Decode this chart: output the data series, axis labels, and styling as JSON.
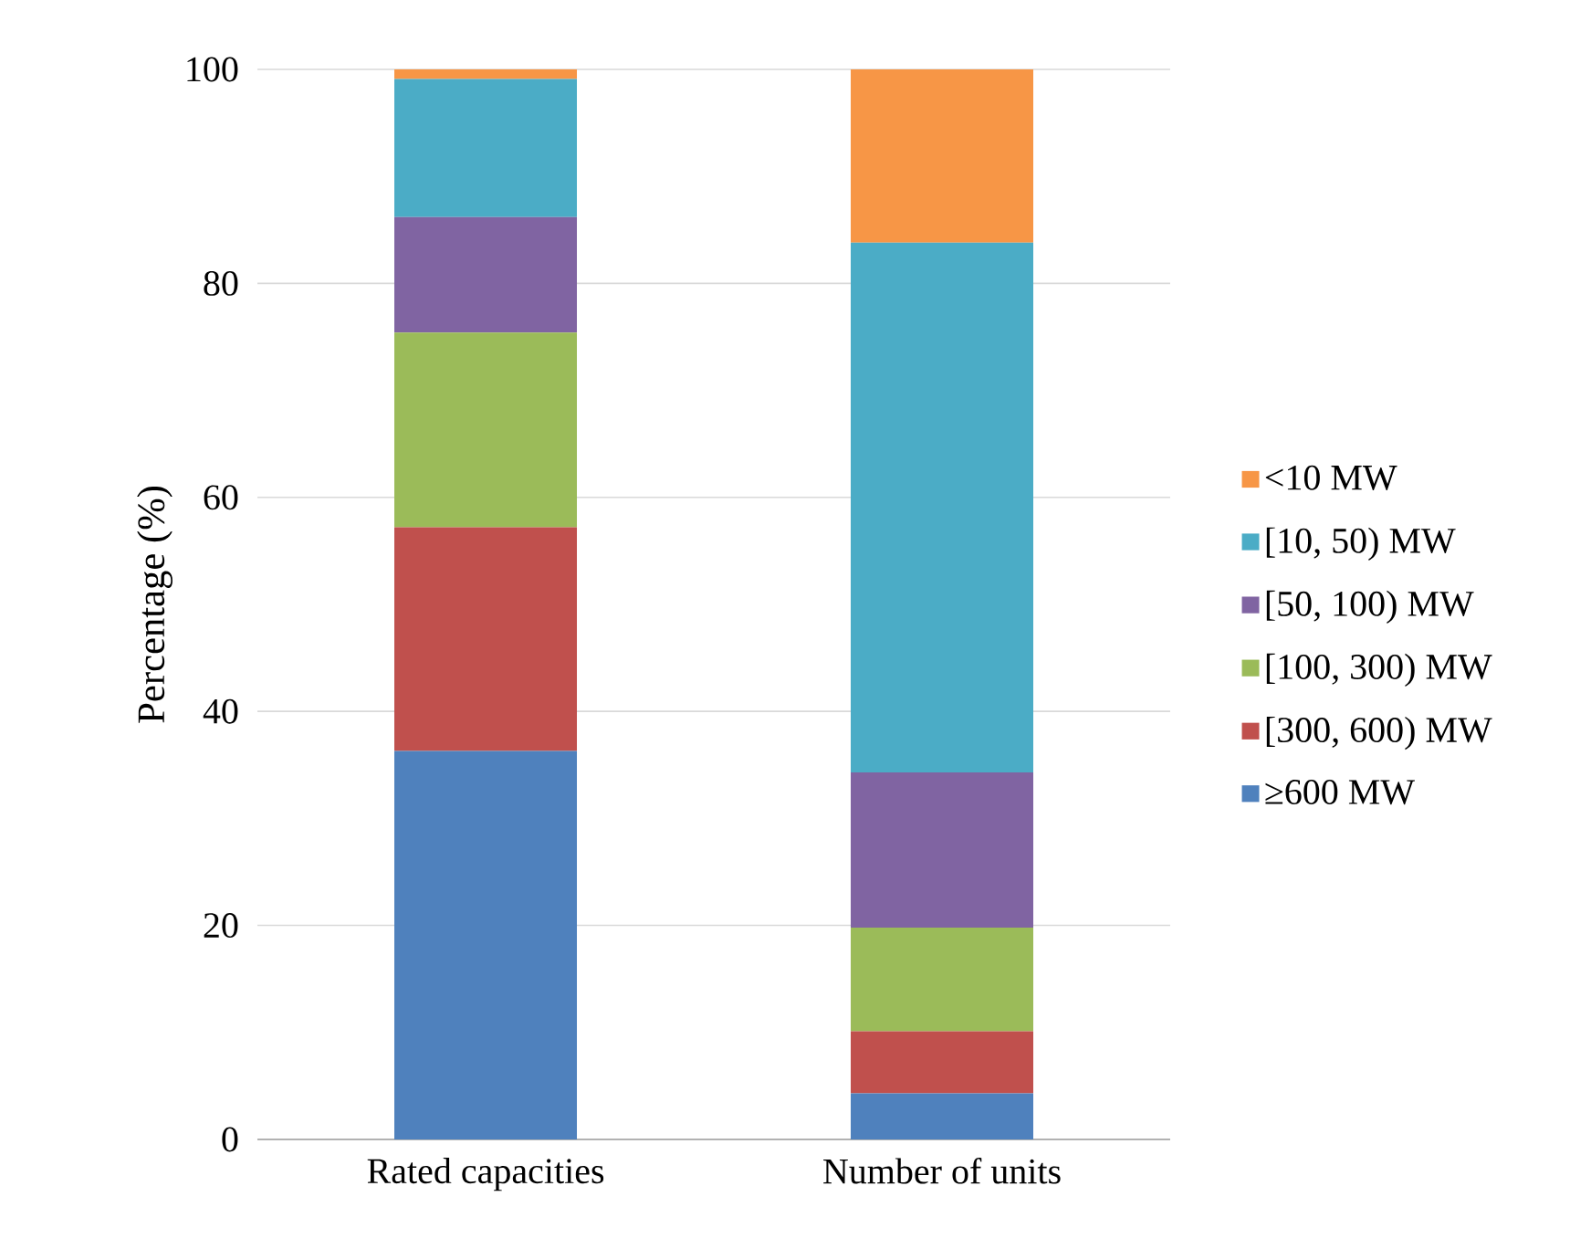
{
  "chart_data": {
    "type": "bar",
    "stacked": true,
    "ylabel": "Percentage (%)",
    "categories": [
      "Rated capacities",
      "Number of units"
    ],
    "series": [
      {
        "name": "≥600 MW",
        "color": "#4f81bd",
        "values": [
          36.3,
          4.3
        ]
      },
      {
        "name": "[300, 600) MW",
        "color": "#c0504d",
        "values": [
          20.9,
          5.8
        ]
      },
      {
        "name": "[100, 300) MW",
        "color": "#9bbb59",
        "values": [
          18.2,
          9.7
        ]
      },
      {
        "name": "[50, 100) MW",
        "color": "#8064a2",
        "values": [
          10.8,
          14.5
        ]
      },
      {
        "name": "[10, 50) MW",
        "color": "#4bacc6",
        "values": [
          12.9,
          49.5
        ]
      },
      {
        "name": "<10 MW",
        "color": "#f79646",
        "values": [
          0.9,
          16.2
        ]
      }
    ],
    "ylim": [
      0,
      100
    ],
    "yticks": [
      0,
      20,
      40,
      60,
      80,
      100
    ],
    "grid": "y",
    "legend": "right"
  }
}
